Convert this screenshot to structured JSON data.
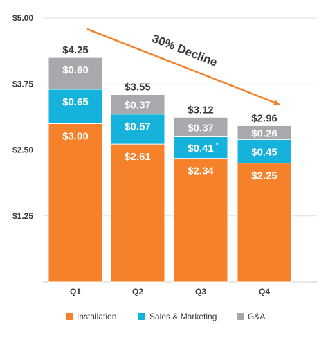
{
  "chart_data": {
    "type": "bar",
    "stacked": true,
    "categories": [
      "Q1",
      "Q2",
      "Q3",
      "Q4"
    ],
    "series": [
      {
        "name": "Installation",
        "color": "#f5822a",
        "values": [
          3.0,
          2.61,
          2.34,
          2.25
        ],
        "labels": [
          "$3.00",
          "$2.61",
          "$2.34",
          "$2.25"
        ]
      },
      {
        "name": "Sales & Marketing",
        "color": "#15b2dc",
        "values": [
          0.65,
          0.57,
          0.41,
          0.45
        ],
        "labels": [
          "$0.65",
          "$0.57",
          "$0.41",
          "$0.45"
        ]
      },
      {
        "name": "G&A",
        "color": "#a7a9ac",
        "values": [
          0.6,
          0.37,
          0.37,
          0.26
        ],
        "labels": [
          "$0.60",
          "$0.37",
          "$0.37",
          "$0.26"
        ]
      }
    ],
    "totals": [
      4.25,
      3.55,
      3.12,
      2.96
    ],
    "total_labels": [
      "$4.25",
      "$3.55",
      "$3.12",
      "$2.96"
    ],
    "notes": [
      {
        "category_index": 2,
        "series_index": 1,
        "text": "*"
      }
    ],
    "ylim": [
      0,
      5
    ],
    "yticks": [
      1.25,
      2.5,
      3.75,
      5.0
    ],
    "ytick_labels": [
      "$1.25",
      "$2.50",
      "$3.75",
      "$5.00"
    ],
    "grid": true,
    "legend_position": "bottom",
    "annotation": {
      "text": "30% Decline",
      "color": "#f5822a",
      "from_category": "Q1",
      "to_category": "Q4"
    }
  }
}
